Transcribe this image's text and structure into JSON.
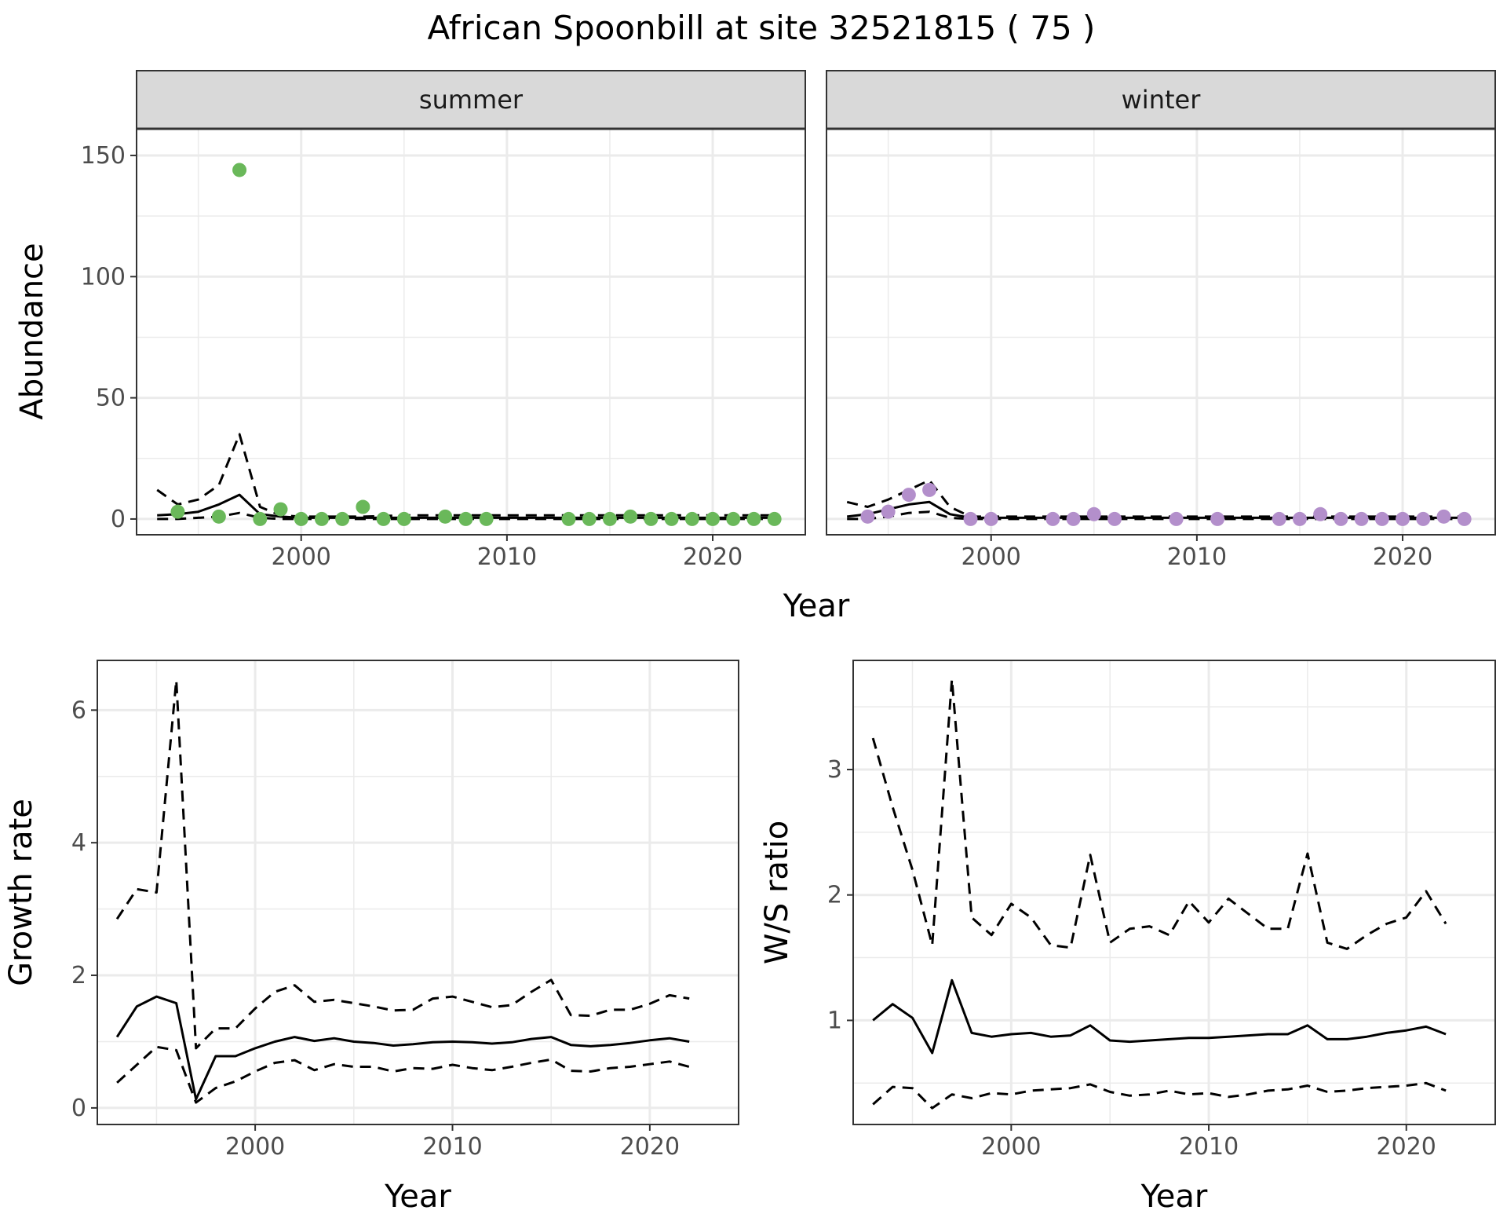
{
  "title": "African Spoonbill at site 32521815 ( 75 )",
  "colors": {
    "summer": "#6ab85a",
    "winter": "#b38fcb",
    "line": "#000000",
    "strip": "#d9d9d9",
    "grid": "#ebebeb"
  },
  "chart_data": [
    {
      "id": "abundance",
      "type": "scatter",
      "ylabel": "Abundance",
      "xlabel": "Year",
      "xlim": [
        1992,
        2024.5
      ],
      "ylim": [
        -6.5,
        161
      ],
      "xticks": [
        2000,
        2010,
        2020
      ],
      "yticks": [
        0,
        50,
        100,
        150
      ],
      "grid": true,
      "facets": [
        {
          "name": "summer",
          "point_color": "#6ab85a",
          "points": {
            "x": [
              1994,
              1996,
              1997,
              1998,
              1999,
              2000,
              2001,
              2002,
              2003,
              2004,
              2005,
              2007,
              2008,
              2009,
              2013,
              2014,
              2015,
              2016,
              2017,
              2018,
              2019,
              2020,
              2021,
              2022,
              2023
            ],
            "y": [
              3,
              1,
              144,
              0,
              4,
              0,
              0,
              0,
              5,
              0,
              0,
              1,
              0,
              0,
              0,
              0,
              0,
              1,
              0,
              0,
              0,
              0,
              0,
              0,
              0
            ]
          },
          "mean": {
            "x": [
              1993,
              1994,
              1995,
              1996,
              1997,
              1998,
              1999,
              2000,
              2003,
              2005,
              2008,
              2010,
              2015,
              2020,
              2023
            ],
            "y": [
              1.5,
              2,
              3,
              6,
              10,
              2,
              1,
              0.5,
              0.5,
              0.5,
              0.5,
              0.5,
              0.5,
              0.5,
              0.5
            ]
          },
          "upper": {
            "x": [
              1993,
              1994,
              1995,
              1996,
              1997,
              1998,
              1999,
              2000,
              2003,
              2005,
              2008,
              2010,
              2015,
              2020,
              2023
            ],
            "y": [
              12,
              6,
              8,
              14,
              35,
              5,
              1.5,
              1,
              1,
              1.5,
              1.5,
              1.5,
              1.5,
              1.5,
              1.5
            ]
          },
          "lower": {
            "x": [
              1993,
              1994,
              1995,
              1996,
              1997,
              1998,
              1999,
              2000,
              2003,
              2005,
              2008,
              2010,
              2015,
              2020,
              2023
            ],
            "y": [
              0,
              0,
              0.5,
              1,
              2.5,
              0.5,
              0,
              0,
              0,
              0,
              0,
              0,
              0,
              0,
              0
            ]
          }
        },
        {
          "name": "winter",
          "point_color": "#b38fcb",
          "points": {
            "x": [
              1994,
              1995,
              1996,
              1997,
              1999,
              2000,
              2003,
              2004,
              2005,
              2006,
              2009,
              2011,
              2014,
              2015,
              2016,
              2017,
              2018,
              2019,
              2020,
              2021,
              2022,
              2023
            ],
            "y": [
              1,
              3,
              10,
              12,
              0,
              0,
              0,
              0,
              2,
              0,
              0,
              0,
              0,
              0,
              2,
              0,
              0,
              0,
              0,
              0,
              1,
              0
            ]
          },
          "mean": {
            "x": [
              1993,
              1994,
              1995,
              1996,
              1997,
              1998,
              1999,
              2000,
              2005,
              2010,
              2015,
              2020,
              2023
            ],
            "y": [
              1,
              2,
              4,
              6,
              7,
              2,
              0.5,
              0.5,
              0.5,
              0.5,
              0.5,
              0.5,
              0.5
            ]
          },
          "upper": {
            "x": [
              1993,
              1994,
              1995,
              1996,
              1997,
              1998,
              1999,
              2000,
              2005,
              2010,
              2015,
              2020,
              2023
            ],
            "y": [
              7,
              5,
              8,
              12,
              16,
              5,
              1,
              1,
              1,
              1,
              1,
              1,
              1
            ]
          },
          "lower": {
            "x": [
              1993,
              1994,
              1995,
              1996,
              1997,
              1998,
              1999,
              2000,
              2005,
              2010,
              2015,
              2020,
              2023
            ],
            "y": [
              0,
              0,
              1,
              2.5,
              3,
              0.5,
              0,
              0,
              0,
              0,
              0,
              0,
              0
            ]
          }
        }
      ]
    },
    {
      "id": "growth",
      "type": "line",
      "ylabel": "Growth rate",
      "xlabel": "Year",
      "xlim": [
        1992,
        2024.5
      ],
      "ylim": [
        -0.25,
        6.75
      ],
      "xticks": [
        2000,
        2010,
        2020
      ],
      "yticks": [
        0,
        2,
        4,
        6
      ],
      "grid": true,
      "x": [
        1993,
        1994,
        1995,
        1996,
        1997,
        1998,
        1999,
        2000,
        2001,
        2002,
        2003,
        2004,
        2005,
        2006,
        2007,
        2008,
        2009,
        2010,
        2011,
        2012,
        2013,
        2014,
        2015,
        2016,
        2017,
        2018,
        2019,
        2020,
        2021,
        2022
      ],
      "mean": [
        1.07,
        1.53,
        1.68,
        1.58,
        0.13,
        0.78,
        0.78,
        0.9,
        1.0,
        1.07,
        1.01,
        1.05,
        1.0,
        0.98,
        0.94,
        0.96,
        0.99,
        1.0,
        0.99,
        0.97,
        0.99,
        1.04,
        1.07,
        0.95,
        0.93,
        0.95,
        0.98,
        1.02,
        1.05,
        1.0
      ],
      "upper": [
        2.85,
        3.3,
        3.25,
        6.45,
        0.9,
        1.2,
        1.2,
        1.5,
        1.75,
        1.85,
        1.6,
        1.63,
        1.58,
        1.53,
        1.47,
        1.48,
        1.65,
        1.68,
        1.6,
        1.52,
        1.55,
        1.75,
        1.93,
        1.4,
        1.39,
        1.48,
        1.48,
        1.57,
        1.7,
        1.65
      ],
      "lower": [
        0.38,
        0.65,
        0.92,
        0.87,
        0.08,
        0.3,
        0.4,
        0.55,
        0.68,
        0.72,
        0.57,
        0.66,
        0.62,
        0.62,
        0.55,
        0.6,
        0.59,
        0.65,
        0.6,
        0.57,
        0.62,
        0.68,
        0.73,
        0.56,
        0.55,
        0.6,
        0.62,
        0.66,
        0.7,
        0.62
      ]
    },
    {
      "id": "ws",
      "type": "line",
      "ylabel": "W/S ratio",
      "xlabel": "Year",
      "xlim": [
        1992,
        2024.5
      ],
      "ylim": [
        0.17,
        3.87
      ],
      "xticks": [
        2000,
        2010,
        2020
      ],
      "yticks": [
        1,
        2,
        3
      ],
      "grid": true,
      "x": [
        1993,
        1994,
        1995,
        1996,
        1997,
        1998,
        1999,
        2000,
        2001,
        2002,
        2003,
        2004,
        2005,
        2006,
        2007,
        2008,
        2009,
        2010,
        2011,
        2012,
        2013,
        2014,
        2015,
        2016,
        2017,
        2018,
        2019,
        2020,
        2021,
        2022
      ],
      "mean": [
        1.0,
        1.13,
        1.02,
        0.74,
        1.32,
        0.9,
        0.87,
        0.89,
        0.9,
        0.87,
        0.88,
        0.96,
        0.84,
        0.83,
        0.84,
        0.85,
        0.86,
        0.86,
        0.87,
        0.88,
        0.89,
        0.89,
        0.96,
        0.85,
        0.85,
        0.87,
        0.9,
        0.92,
        0.95,
        0.89
      ],
      "upper": [
        3.25,
        2.7,
        2.2,
        1.6,
        3.72,
        1.82,
        1.68,
        1.93,
        1.82,
        1.6,
        1.58,
        2.32,
        1.62,
        1.73,
        1.75,
        1.68,
        1.95,
        1.78,
        1.97,
        1.85,
        1.73,
        1.73,
        2.33,
        1.62,
        1.57,
        1.68,
        1.77,
        1.82,
        2.03,
        1.77
      ],
      "lower": [
        0.33,
        0.47,
        0.46,
        0.3,
        0.41,
        0.38,
        0.42,
        0.41,
        0.44,
        0.45,
        0.46,
        0.49,
        0.43,
        0.4,
        0.41,
        0.44,
        0.41,
        0.42,
        0.39,
        0.41,
        0.44,
        0.45,
        0.48,
        0.43,
        0.44,
        0.46,
        0.47,
        0.48,
        0.5,
        0.44
      ]
    }
  ]
}
